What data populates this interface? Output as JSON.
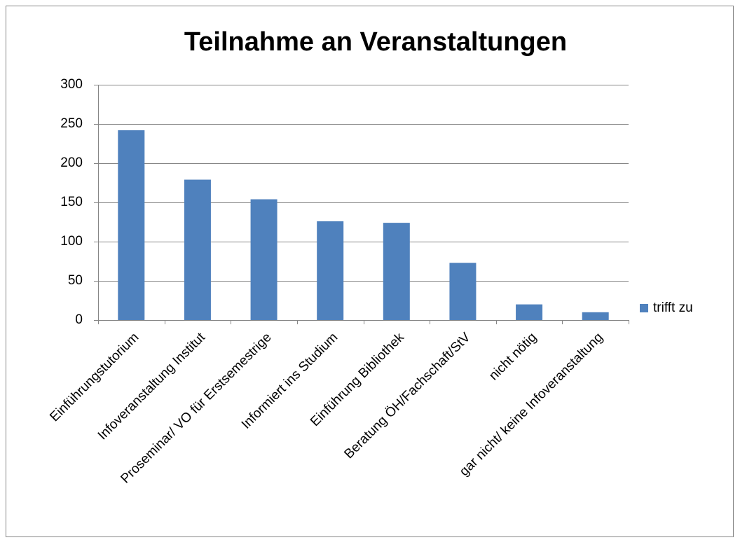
{
  "chart_data": {
    "type": "bar",
    "title": "Teilnahme an Veranstaltungen",
    "categories": [
      "Einführungstutorium",
      "Infoveranstaltung Institut",
      "Proseminar/ VO für Erstsemestrige",
      "Informiert ins Studium",
      "Einführung Bibliothek",
      "Beratung ÖH/Fachschaft/StV",
      "nicht nötig",
      "gar nicht/ keine Infoveranstaltung"
    ],
    "series": [
      {
        "name": "trifft zu",
        "color": "#4f81bd",
        "values": [
          242,
          179,
          154,
          126,
          124,
          73,
          20,
          10
        ]
      }
    ],
    "ylim": [
      0,
      300
    ],
    "yticks": [
      0,
      50,
      100,
      150,
      200,
      250,
      300
    ],
    "grid": true,
    "legend": "right"
  }
}
